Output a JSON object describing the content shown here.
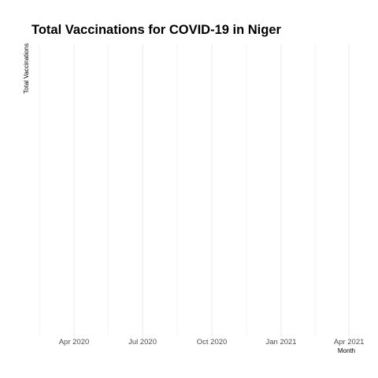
{
  "chart_data": {
    "type": "line",
    "title": "Total Vaccinations for COVID-19 in Niger",
    "xlabel": "Month",
    "ylabel": "Total Vaccinations",
    "x_axis_type": "date",
    "x_range": [
      "2020-02-15",
      "2021-04-04"
    ],
    "x_ticks": [
      {
        "date": "2020-04-01",
        "label": "Apr 2020"
      },
      {
        "date": "2020-07-01",
        "label": "Jul 2020"
      },
      {
        "date": "2020-10-01",
        "label": "Oct 2020"
      },
      {
        "date": "2021-01-01",
        "label": "Jan 2021"
      },
      {
        "date": "2021-04-01",
        "label": "Apr 2021"
      }
    ],
    "x_minor_grid": [
      "2020-02-15",
      "2020-05-16",
      "2020-08-16",
      "2020-11-16",
      "2021-02-15"
    ],
    "y_ticks": [],
    "series": [],
    "grid": true,
    "legend": "none",
    "colors": {
      "grid": "#ebebeb",
      "tick_text": "#4d4d4d",
      "text": "#000000",
      "background": "#ffffff"
    }
  }
}
